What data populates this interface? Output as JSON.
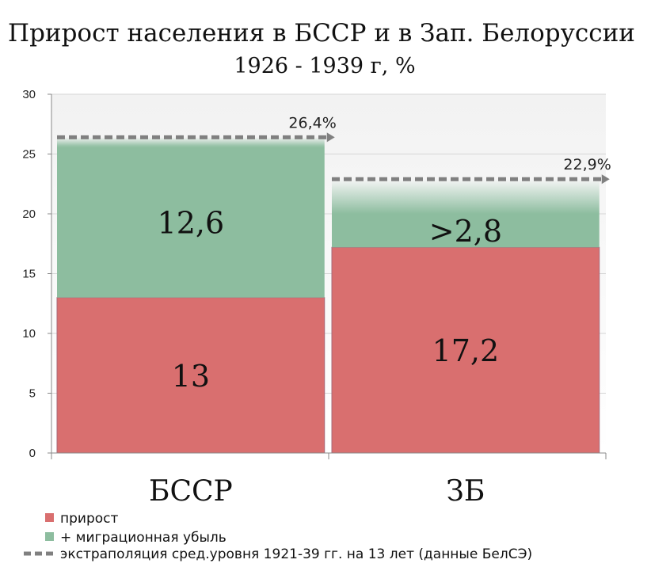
{
  "chart_data": {
    "type": "bar",
    "stacked": true,
    "title": "Прирост населения в БССР и в Зап. Белоруссии",
    "subtitle": "1926 - 1939 г, %",
    "categories": [
      "БССР",
      "ЗБ"
    ],
    "ylim": [
      0,
      30
    ],
    "yticks": [
      0,
      5,
      10,
      15,
      20,
      25,
      30
    ],
    "grid": true,
    "series": [
      {
        "name": "прирост",
        "color": "#d96f6f",
        "values": [
          13,
          17.2
        ],
        "labels": [
          "13",
          "17,2"
        ]
      },
      {
        "name": "+ миграционная убыль",
        "color": "#8dbd9f",
        "values": [
          12.6,
          2.8
        ],
        "labels": [
          "12,6",
          ">2,8"
        ]
      }
    ],
    "extrapolation": {
      "name": "экстраполяция сред.уровня 1921-39 гг. на 13 лет (данные БелСЭ)",
      "color": "#808080",
      "values": [
        26.4,
        22.9
      ],
      "labels": [
        "26,4%",
        "22,9%"
      ]
    },
    "legend_position": "bottom-left"
  }
}
